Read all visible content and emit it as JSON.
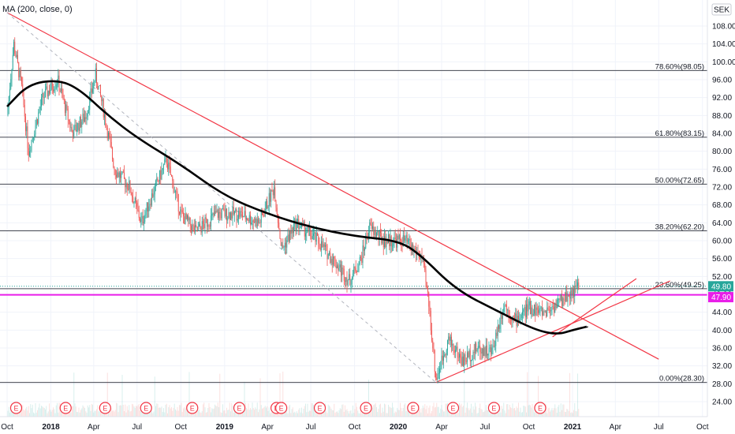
{
  "indicator": {
    "label": "MA (200, close, 0)"
  },
  "currency": "SEK",
  "chart_data": {
    "type": "candlestick",
    "y_ticks": [
      "108.00",
      "104.00",
      "100.00",
      "96.00",
      "92.00",
      "88.00",
      "84.00",
      "80.00",
      "76.00",
      "72.00",
      "68.00",
      "64.00",
      "60.00",
      "56.00",
      "52.00",
      "48.00",
      "44.00",
      "40.00",
      "36.00",
      "32.00",
      "28.00",
      "24.00"
    ],
    "x_ticks": [
      "Oct",
      "2018",
      "Apr",
      "Jul",
      "Oct",
      "2019",
      "Apr",
      "Jul",
      "Oct",
      "2020",
      "Apr",
      "Jul",
      "Oct",
      "2021",
      "Apr",
      "Jul",
      "Oct"
    ],
    "ylim": [
      21,
      111
    ],
    "fib_levels": [
      {
        "label": "78.60%(98.05)",
        "value": 98.05
      },
      {
        "label": "61.80%(83.15)",
        "value": 83.15
      },
      {
        "label": "50.00%(72.65)",
        "value": 72.65
      },
      {
        "label": "38.20%(62.20)",
        "value": 62.2
      },
      {
        "label": "23.60%(49.25)",
        "value": 49.25
      },
      {
        "label": "0.00%(28.30)",
        "value": 28.3
      }
    ],
    "price_tags": [
      {
        "text": "49.80",
        "value": 49.8,
        "color": "#26a69a"
      },
      {
        "text": "47.90",
        "value": 47.9,
        "color": "#e91ee9"
      }
    ],
    "horizontal_line": {
      "value": 47.9,
      "color": "#e91ee9"
    },
    "price_path": [
      [
        "2017-10-01",
        88
      ],
      [
        "2017-10-15",
        104
      ],
      [
        "2017-11-01",
        94
      ],
      [
        "2017-11-15",
        80
      ],
      [
        "2017-12-15",
        92
      ],
      [
        "2018-01-15",
        96
      ],
      [
        "2018-02-15",
        84
      ],
      [
        "2018-03-15",
        88
      ],
      [
        "2018-04-05",
        97
      ],
      [
        "2018-04-20",
        90
      ],
      [
        "2018-05-15",
        76
      ],
      [
        "2018-06-15",
        72
      ],
      [
        "2018-07-10",
        64
      ],
      [
        "2018-08-01",
        70
      ],
      [
        "2018-09-01",
        78
      ],
      [
        "2018-10-01",
        66
      ],
      [
        "2018-11-01",
        62
      ],
      [
        "2018-12-15",
        66
      ],
      [
        "2019-02-01",
        66
      ],
      [
        "2019-03-15",
        64
      ],
      [
        "2019-04-15",
        72
      ],
      [
        "2019-05-01",
        58
      ],
      [
        "2019-06-01",
        64
      ],
      [
        "2019-07-15",
        60
      ],
      [
        "2019-08-15",
        56
      ],
      [
        "2019-09-20",
        51
      ],
      [
        "2019-10-15",
        56
      ],
      [
        "2019-11-01",
        63
      ],
      [
        "2019-12-01",
        60
      ],
      [
        "2020-01-15",
        60
      ],
      [
        "2020-02-20",
        56
      ],
      [
        "2020-03-05",
        46
      ],
      [
        "2020-03-20",
        29
      ],
      [
        "2020-04-15",
        38
      ],
      [
        "2020-05-15",
        33
      ],
      [
        "2020-06-15",
        36
      ],
      [
        "2020-07-15",
        35
      ],
      [
        "2020-08-10",
        46
      ],
      [
        "2020-09-01",
        42
      ],
      [
        "2020-10-01",
        45
      ],
      [
        "2020-11-01",
        44
      ],
      [
        "2020-12-01",
        46
      ],
      [
        "2021-01-15",
        49.8
      ]
    ],
    "ma200": [
      [
        "2017-10-01",
        90
      ],
      [
        "2017-11-15",
        95
      ],
      [
        "2018-01-15",
        96
      ],
      [
        "2018-03-01",
        94
      ],
      [
        "2018-05-01",
        88
      ],
      [
        "2018-07-01",
        83
      ],
      [
        "2018-10-01",
        77
      ],
      [
        "2019-01-01",
        70
      ],
      [
        "2019-04-01",
        66
      ],
      [
        "2019-07-01",
        63
      ],
      [
        "2019-10-01",
        61
      ],
      [
        "2020-01-01",
        60
      ],
      [
        "2020-02-15",
        57
      ],
      [
        "2020-05-01",
        49
      ],
      [
        "2020-08-01",
        44
      ],
      [
        "2020-10-15",
        40
      ],
      [
        "2020-12-01",
        39
      ],
      [
        "2021-01-01",
        40
      ],
      [
        "2021-02-01",
        40.8
      ]
    ],
    "trend_lines": [
      {
        "from": [
          "2017-10-01",
          111
        ],
        "to": [
          "2021-07-01",
          33.5
        ],
        "color": "#f23645",
        "style": "solid"
      },
      {
        "from": [
          "2020-03-20",
          28.3
        ],
        "to": [
          "2021-07-25",
          51
        ],
        "color": "#f23645",
        "style": "solid"
      },
      {
        "from": [
          "2020-11-20",
          38.5
        ],
        "to": [
          "2021-05-15",
          51.5
        ],
        "color": "#f23645",
        "style": "solid"
      },
      {
        "from": [
          "2017-10-01",
          111
        ],
        "to": [
          "2020-03-20",
          28.3
        ],
        "color": "#b2b5be",
        "style": "dashed"
      }
    ],
    "earnings_dates": [
      "2017-10-20",
      "2018-02-01",
      "2018-04-25",
      "2018-07-20",
      "2018-10-25",
      "2019-02-01",
      "2019-04-20",
      "2019-04-30",
      "2019-07-20",
      "2019-10-25",
      "2020-02-01",
      "2020-04-25",
      "2020-07-20",
      "2020-10-25"
    ]
  }
}
